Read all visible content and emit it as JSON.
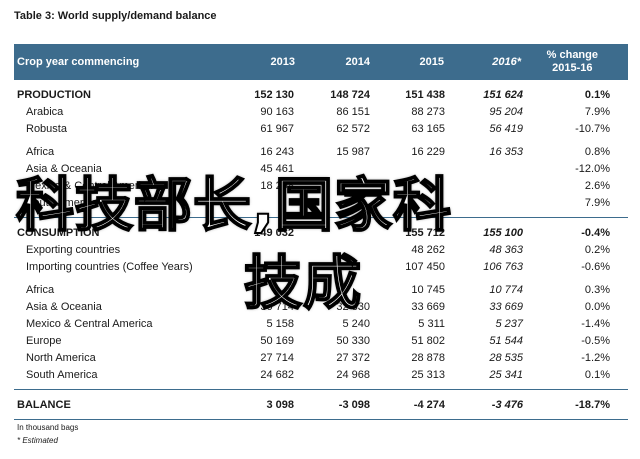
{
  "title": "Table 3: World supply/demand balance",
  "header": {
    "label": "Crop year commencing",
    "years": [
      "2013",
      "2014",
      "2015",
      "2016*"
    ],
    "change_line1": "% change",
    "change_line2": "2015-16"
  },
  "production": {
    "total": {
      "label": "PRODUCTION",
      "values": [
        "152 130",
        "148 724",
        "151 438",
        "151 624"
      ],
      "change": "0.1%"
    },
    "rows": [
      {
        "label": "Arabica",
        "values": [
          "90 163",
          "86 151",
          "88 273",
          "95 204"
        ],
        "change": "7.9%"
      },
      {
        "label": "Robusta",
        "values": [
          "61 967",
          "62 572",
          "63 165",
          "56 419"
        ],
        "change": "-10.7%"
      },
      {
        "label": "Africa",
        "values": [
          "16 243",
          "15 987",
          "16 229",
          "16 353"
        ],
        "change": "0.8%"
      },
      {
        "label": "Asia & Oceania",
        "values": [
          "45 461",
          "",
          "",
          ""
        ],
        "change": "-12.0%"
      },
      {
        "label": "Mexico & Central America",
        "values": [
          "18 298",
          "",
          "",
          ""
        ],
        "change": "2.6%"
      },
      {
        "label": "South America",
        "values": [
          "",
          "",
          "",
          ""
        ],
        "change": "7.9%"
      }
    ]
  },
  "consumption": {
    "total": {
      "label": "CONSUMPTION",
      "values": [
        "149 032",
        "",
        "155 712",
        "155 100"
      ],
      "change": "-0.4%"
    },
    "rows": [
      {
        "label": "Exporting countries",
        "values": [
          "",
          "",
          "48 262",
          "48 363"
        ],
        "change": "0.2%"
      },
      {
        "label": "Importing countries (Coffee Years)",
        "values": [
          "",
          "",
          "107 450",
          "106 763"
        ],
        "change": "-0.6%"
      },
      {
        "label": "Africa",
        "values": [
          "",
          "",
          "10 745",
          "10 774"
        ],
        "change": "0.3%"
      },
      {
        "label": "Asia & Oceania",
        "values": [
          "30 714",
          "32 330",
          "33 669",
          "33 669"
        ],
        "change": "0.0%"
      },
      {
        "label": "Mexico & Central America",
        "values": [
          "5 158",
          "5 240",
          "5 311",
          "5 237"
        ],
        "change": "-1.4%"
      },
      {
        "label": "Europe",
        "values": [
          "50 169",
          "50 330",
          "51 802",
          "51 544"
        ],
        "change": "-0.5%"
      },
      {
        "label": "North America",
        "values": [
          "27 714",
          "27 372",
          "28 878",
          "28 535"
        ],
        "change": "-1.2%"
      },
      {
        "label": "South America",
        "values": [
          "24 682",
          "24 968",
          "25 313",
          "25 341"
        ],
        "change": "0.1%"
      }
    ]
  },
  "balance": {
    "label": "BALANCE",
    "values": [
      "3 098",
      "-3 098",
      "-4 274",
      "-3 476"
    ],
    "change": "-18.7%"
  },
  "notes": {
    "unit": "In thousand bags",
    "estimated": "* Estimated"
  },
  "watermark": {
    "line1": "科技部长,国家科",
    "line2": "技成"
  },
  "colors": {
    "header_bg": "#3d6c8d",
    "header_text": "#ffffff"
  }
}
